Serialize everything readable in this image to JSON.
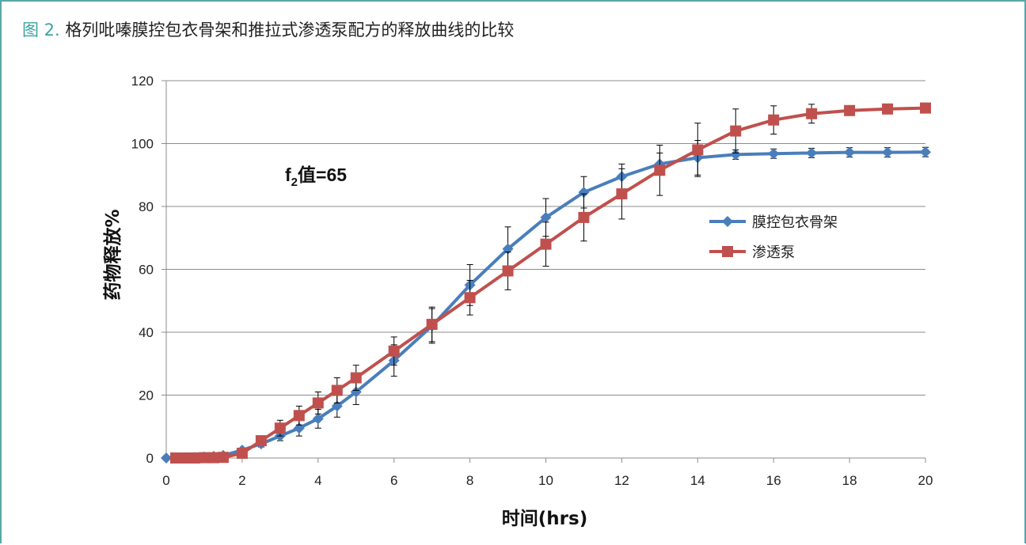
{
  "figure": {
    "number_label": "图 2.",
    "caption": "格列吡嗪膜控包衣骨架和推拉式渗透泵配方的释放曲线的比较"
  },
  "chart_data": {
    "type": "line",
    "title": "",
    "xlabel": "时间(hrs)",
    "ylabel": "药物释放%",
    "xlim": [
      0,
      20
    ],
    "ylim": [
      0,
      120
    ],
    "xticks": [
      0,
      2,
      4,
      6,
      8,
      10,
      12,
      14,
      16,
      18,
      20
    ],
    "yticks": [
      0,
      20,
      40,
      60,
      80,
      100,
      120
    ],
    "grid": "horizontal",
    "legend_position": "right-middle",
    "annotation": {
      "base": "f",
      "subscript": "2",
      "rest": "值=65"
    },
    "series": [
      {
        "name": "膜控包衣骨架",
        "color": "#4a7ebb",
        "marker": "diamond",
        "x": [
          0,
          0.25,
          0.5,
          0.75,
          1,
          1.25,
          1.5,
          2,
          2.5,
          3,
          3.5,
          4,
          4.5,
          5,
          6,
          7,
          8,
          9,
          10,
          11,
          12,
          13,
          14,
          15,
          16,
          17,
          18,
          19,
          20
        ],
        "y": [
          0,
          0,
          0.1,
          0.2,
          0.3,
          0.5,
          0.8,
          2.5,
          4.5,
          7,
          9.5,
          12.5,
          16.5,
          21,
          31,
          42,
          55,
          66.5,
          76.5,
          84.5,
          89.5,
          93.5,
          95.5,
          96.5,
          96.8,
          97,
          97.2,
          97.2,
          97.3
        ],
        "error": [
          0,
          0,
          0,
          0,
          0,
          0,
          0,
          0.5,
          1,
          1.5,
          2.5,
          3,
          3.5,
          4,
          5,
          5.5,
          6.5,
          7,
          6,
          5,
          4,
          3.5,
          5.5,
          1.5,
          1.5,
          1.5,
          1.5,
          1.5,
          1.5
        ]
      },
      {
        "name": "渗透泵",
        "color": "#c0504d",
        "marker": "square",
        "x": [
          0.25,
          0.5,
          0.75,
          1,
          1.25,
          1.5,
          2,
          2.5,
          3,
          3.5,
          4,
          4.5,
          5,
          6,
          7,
          8,
          9,
          10,
          11,
          12,
          13,
          14,
          15,
          16,
          17,
          18,
          19,
          20
        ],
        "y": [
          0,
          0,
          0,
          0.1,
          0.1,
          0.2,
          1.5,
          5.5,
          9.5,
          13.5,
          17.5,
          21.5,
          25.5,
          34,
          42.5,
          51,
          59.5,
          68,
          76.5,
          84,
          91.5,
          98,
          104,
          107.5,
          109.5,
          110.5,
          111,
          111.3
        ],
        "error": [
          0,
          0,
          0,
          0,
          0,
          0,
          0.5,
          1,
          2.5,
          3,
          3.5,
          4,
          4,
          4.5,
          5.5,
          5.5,
          6,
          7,
          7.5,
          8,
          8,
          8.5,
          7,
          4.5,
          3,
          1.5,
          1.2,
          1
        ]
      }
    ]
  }
}
